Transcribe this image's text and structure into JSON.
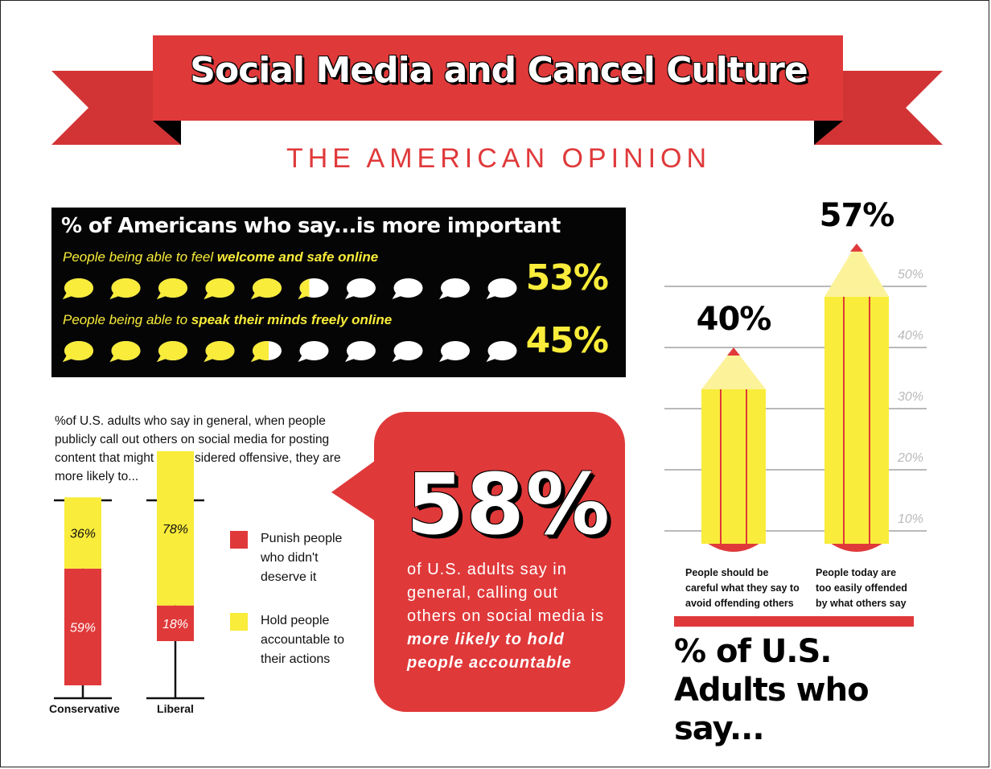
{
  "title": "Social Media and Cancel Culture",
  "subtitle": "THE AMERICAN OPINION",
  "colors": {
    "red": "#e0393a",
    "yellow": "#f9ec3a",
    "black": "#050505",
    "white": "#ffffff",
    "grid": "#b9b9b9"
  },
  "chart_data": [
    {
      "type": "bar",
      "title": "% of Americans who say...is more important",
      "categories": [
        {
          "prefix": "People being able to feel",
          "emphasis": "welcome and safe online"
        },
        {
          "prefix": "People being able to",
          "emphasis": "speak their minds freely online"
        }
      ],
      "values": [
        53,
        45
      ],
      "value_labels": [
        "53%",
        "45%"
      ],
      "icon_count": 10,
      "icon": "speech-bubble-icon"
    },
    {
      "type": "bar",
      "title": "%of U.S. adults who say in general, when people publicly call out others on social media for posting content that might be considered offensive, they are more likely to...",
      "categories": [
        "Conservative",
        "Liberal"
      ],
      "series": [
        {
          "name": "Punish people who didn't deserve it",
          "values": [
            59,
            18
          ],
          "labels": [
            "59%",
            "18%"
          ],
          "color": "#e0393a"
        },
        {
          "name": "Hold people accountable to their actions",
          "values": [
            36,
            78
          ],
          "labels": [
            "36%",
            "78%"
          ],
          "color": "#f9ec3a"
        }
      ],
      "ylim": [
        0,
        100
      ]
    },
    {
      "type": "bar",
      "title": "% of U.S. Adults who say...",
      "categories": [
        "People should be careful what they say to avoid offending others",
        "People today are too easily offended by what others say"
      ],
      "values": [
        40,
        57
      ],
      "value_labels": [
        "40%",
        "57%"
      ],
      "yticks": [
        "10%",
        "20%",
        "30%",
        "40%",
        "50%"
      ],
      "ylim": [
        0,
        50
      ],
      "mark": "pencil-icon"
    }
  ],
  "callout": {
    "value": "58%",
    "text_plain": "of U.S. adults say in general, calling out others on social media is",
    "text_emphasis": "more likely to hold people accountable"
  }
}
